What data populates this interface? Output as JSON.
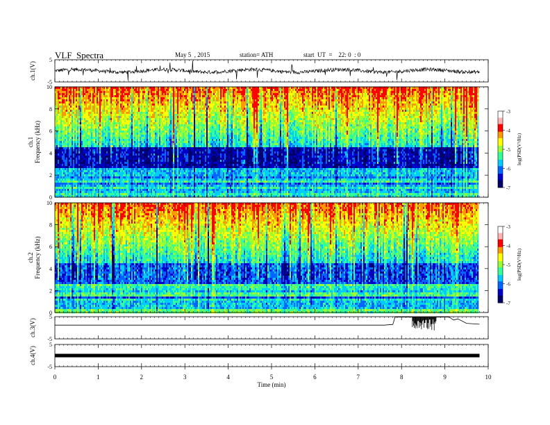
{
  "header": {
    "title": "VLF  Spectra",
    "date": "May 5  , 2015",
    "station": "station= ATH",
    "start": "start  UT  =    22: 0  : 0"
  },
  "colors": {
    "axis": "#000000",
    "spectrogram_palette": [
      "#000066",
      "#0000cc",
      "#0066ff",
      "#00ccff",
      "#33ff99",
      "#99ff33",
      "#ffff00",
      "#ff9900",
      "#ff0000",
      "#ffb3b3",
      "#ffffff"
    ]
  },
  "chart_data": [
    {
      "id": "ch1-waveform",
      "type": "line",
      "ylabel": "ch.1(V)",
      "ylim": [
        -5,
        5
      ],
      "yticks": [
        "5",
        "-5"
      ],
      "xlim": [
        0,
        10
      ],
      "level": 0
    },
    {
      "id": "ch1-spectrogram",
      "type": "heatmap",
      "ylabel": "ch.1\nFrequency  (kHz)",
      "ylabel_lines": [
        "ch.1",
        "Frequency  (kHz)"
      ],
      "ylim": [
        0,
        10
      ],
      "yticks": [
        "0",
        "2",
        "4",
        "6",
        "8",
        "10"
      ],
      "xlim": [
        0,
        10
      ],
      "data_end_min": 9.8,
      "colorbar": {
        "label": "log(PSD(V²/Hz)",
        "range": [
          -7,
          -3
        ],
        "ticks": [
          "-3",
          "-4",
          "-5",
          "-6",
          "-7"
        ]
      }
    },
    {
      "id": "ch2-spectrogram",
      "type": "heatmap",
      "ylabel": "ch.2\nFrequency  (kHz)",
      "ylabel_lines": [
        "ch.2",
        "Frequency  (kHz)"
      ],
      "ylim": [
        0,
        10
      ],
      "yticks": [
        "0",
        "2",
        "4",
        "6",
        "8",
        "10"
      ],
      "xlim": [
        0,
        10
      ],
      "data_end_min": 9.8,
      "colorbar": {
        "label": "log(PSD(V²/Hz)",
        "range": [
          -7,
          -3
        ],
        "ticks": [
          "-3",
          "-4",
          "-5",
          "-6",
          "-7"
        ]
      }
    },
    {
      "id": "ch3-waveform",
      "type": "line",
      "ylabel": "ch.3(V)",
      "ylim": [
        -5,
        5
      ],
      "yticks": [
        "5",
        "-5"
      ],
      "xlim": [
        0,
        10
      ],
      "x": [
        0,
        7.6,
        7.8,
        7.85,
        8.2,
        8.3,
        9.1,
        9.2,
        9.3,
        9.5,
        9.8
      ],
      "y": [
        1.2,
        1.2,
        1.5,
        4.8,
        4.8,
        4.8,
        4.8,
        3.5,
        4.0,
        2.0,
        1.6
      ]
    },
    {
      "id": "ch4-waveform",
      "type": "line",
      "ylabel": "ch.4(V)",
      "ylim": [
        -5,
        5
      ],
      "yticks": [
        "5",
        "-5"
      ],
      "xlim": [
        0,
        10
      ],
      "level": 0
    }
  ],
  "xaxis": {
    "label": "Time  (min)",
    "ticks": [
      "0",
      "1",
      "2",
      "3",
      "4",
      "5",
      "6",
      "7",
      "8",
      "9",
      "10"
    ]
  }
}
